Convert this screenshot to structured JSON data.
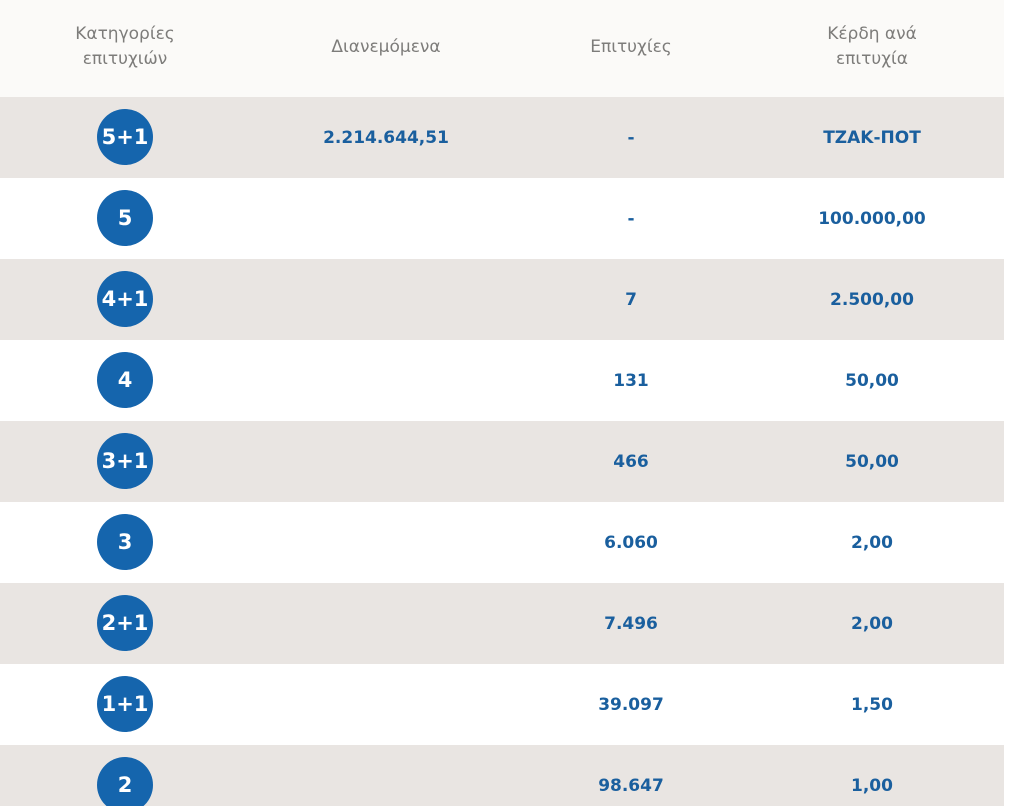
{
  "header": {
    "categories": "Κατηγορίες\nεπιτυχιών",
    "distributed": "Διανεμόμενα",
    "winners": "Επιτυχίες",
    "prize_per_winner": "Κέρδη ανά\nεπιτυχία"
  },
  "rows": [
    {
      "category": "5+1",
      "distributed": "2.214.644,51",
      "winners": "-",
      "prize": "ΤΖΑΚ-ΠΟΤ"
    },
    {
      "category": "5",
      "distributed": "",
      "winners": "-",
      "prize": "100.000,00"
    },
    {
      "category": "4+1",
      "distributed": "",
      "winners": "7",
      "prize": "2.500,00"
    },
    {
      "category": "4",
      "distributed": "",
      "winners": "131",
      "prize": "50,00"
    },
    {
      "category": "3+1",
      "distributed": "",
      "winners": "466",
      "prize": "50,00"
    },
    {
      "category": "3",
      "distributed": "",
      "winners": "6.060",
      "prize": "2,00"
    },
    {
      "category": "2+1",
      "distributed": "",
      "winners": "7.496",
      "prize": "2,00"
    },
    {
      "category": "1+1",
      "distributed": "",
      "winners": "39.097",
      "prize": "1,50"
    },
    {
      "category": "2",
      "distributed": "",
      "winners": "98.647",
      "prize": "1,00"
    }
  ],
  "colors": {
    "badge": "#1565ad",
    "value_text": "#1a5f9e",
    "header_text": "#7d7c7a",
    "row_shaded": "#e9e5e2"
  }
}
